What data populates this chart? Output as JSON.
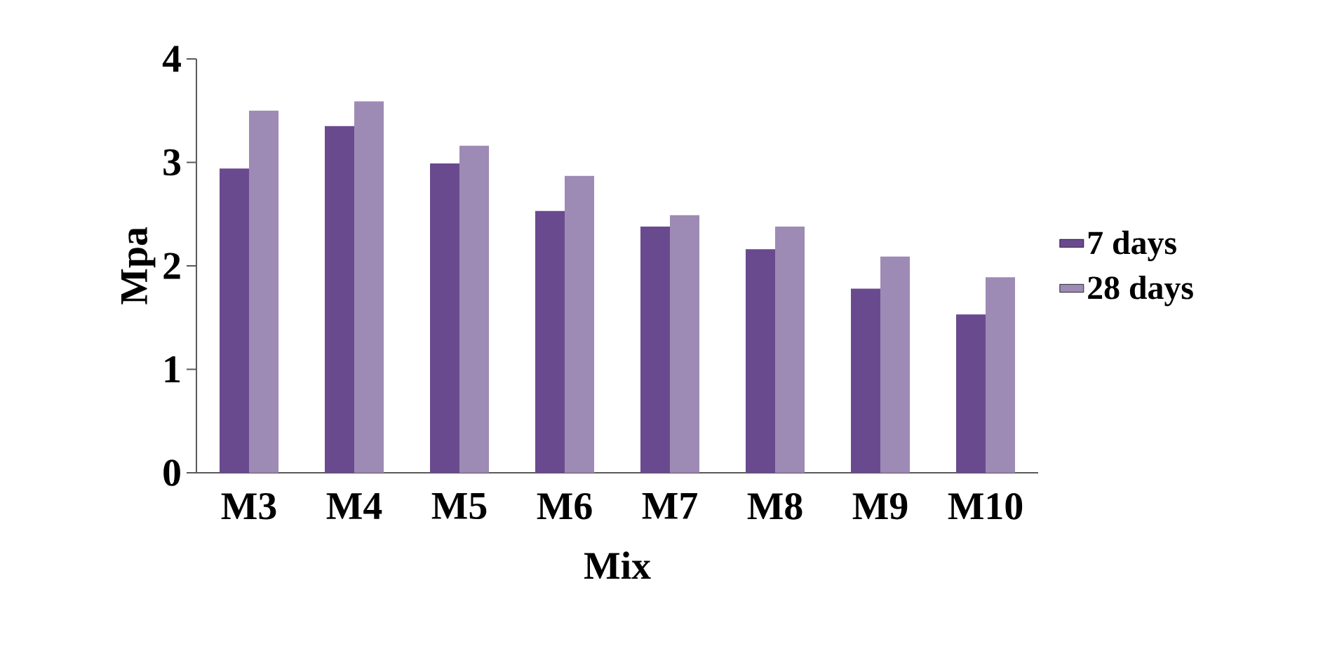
{
  "chart_data": {
    "type": "bar",
    "xlabel": "Mix",
    "ylabel": "Mpa",
    "categories": [
      "M3",
      "M4",
      "M5",
      "M6",
      "M7",
      "M8",
      "M9",
      "M10"
    ],
    "series": [
      {
        "name": "7 days",
        "color": "#6a4a8f",
        "values": [
          2.94,
          3.35,
          2.99,
          2.53,
          2.38,
          2.16,
          1.78,
          1.53
        ]
      },
      {
        "name": "28 days",
        "color": "#9d8ab5",
        "values": [
          3.5,
          3.59,
          3.16,
          2.87,
          2.49,
          2.38,
          2.09,
          1.89
        ]
      }
    ],
    "ylim": [
      0,
      4
    ],
    "yticks": [
      0,
      1,
      2,
      3,
      4
    ],
    "grid": false,
    "legend": "right"
  }
}
